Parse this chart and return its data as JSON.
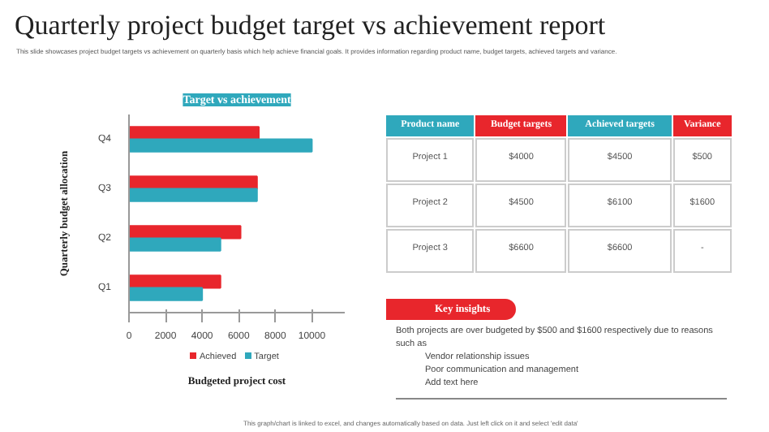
{
  "chart_data": [
    {
      "type": "other",
      "title": "Quarterly project budget target vs achievement report",
      "subtitle": "This slide showcases project budget targets vs achievement on quarterly basis which help achieve financial goals. It provides information regarding product name, budget targets, achieved targets and variance.",
      "annotations": [
        "This graph/chart is linked to excel, and changes automatically based on data. Just left click on it and select 'edit data'"
      ]
    },
    {
      "type": "bar",
      "orientation": "horizontal",
      "title": "Target vs achievement",
      "xlabel": "Budgeted project cost",
      "ylabel": "Quarterly budget allocation",
      "categories": [
        "Q4",
        "Q3",
        "Q2",
        "Q1"
      ],
      "series": [
        {
          "name": "Achieved",
          "color": "#e8262c",
          "values": [
            7100,
            7000,
            6100,
            5000
          ]
        },
        {
          "name": "Target",
          "color": "#2fa8bc",
          "values": [
            10000,
            7000,
            5000,
            4000
          ]
        }
      ],
      "xlim": [
        0,
        11800
      ],
      "xticks": [
        0,
        2000,
        4000,
        6000,
        8000,
        10000
      ],
      "grid": false,
      "legend": "bottom"
    },
    {
      "type": "other",
      "annotations": [
        "Product name",
        "Budget targets",
        "Achieved targets",
        "Variance",
        "Project 1",
        "$4000",
        "$4500",
        "$500",
        "Project 2",
        "$4500",
        "$6100",
        "$1600",
        "Project 3",
        "$6600",
        "$6600",
        "-"
      ]
    },
    {
      "type": "other",
      "title": "Key insights",
      "annotations": [
        "Both projects are over budgeted  by $500 and $1600 respectively due to reasons such as",
        "Vendor relationship issues",
        "Poor communication and management",
        "Add text here"
      ]
    }
  ]
}
